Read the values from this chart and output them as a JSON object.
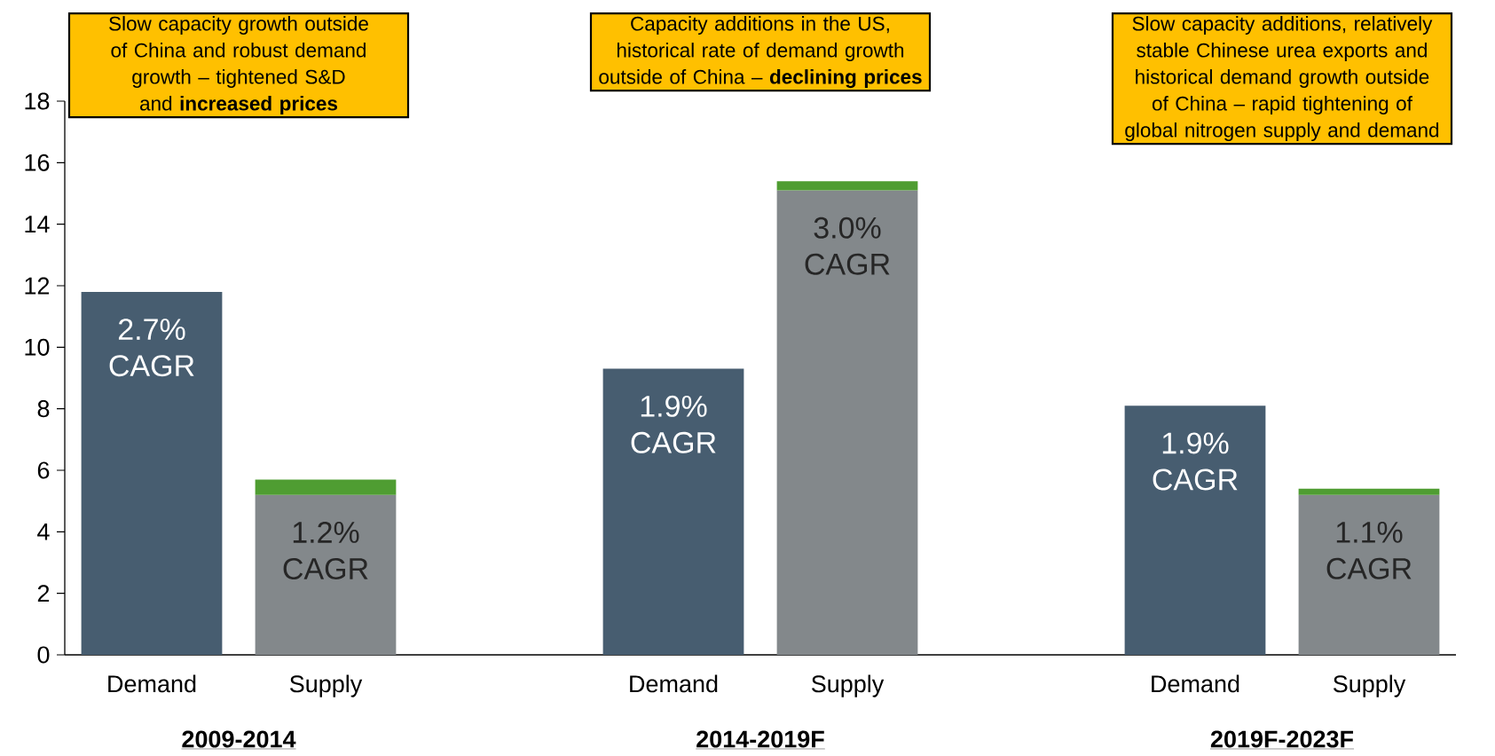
{
  "chart_data": {
    "type": "bar",
    "stacked": true,
    "categories": [
      "Demand",
      "Supply",
      null,
      "Demand",
      "Supply",
      null,
      "Demand",
      "Supply"
    ],
    "series": [
      {
        "colors": [
          "#475d70",
          "#83888b",
          null,
          "#475d70",
          "#83888b",
          null,
          "#475d70",
          "#83888b"
        ],
        "values": [
          11.8,
          5.2,
          null,
          9.3,
          15.1,
          null,
          8.1,
          5.2
        ]
      },
      {
        "color": "#4f9d32",
        "values": [
          null,
          0.5,
          null,
          null,
          0.3,
          null,
          null,
          0.2
        ]
      }
    ],
    "ylim": [
      0,
      18
    ],
    "yticks": [
      0,
      2,
      4,
      6,
      8,
      10,
      12,
      14,
      16,
      18
    ],
    "annotations": [
      "Slow capacity growth outside of China and robust demand growth – tightened S&D and **increased prices**",
      "Capacity additions in the US, historical rate of demand growth outside of China – **declining prices**",
      "Slow capacity additions, relatively stable Chinese urea exports and historical demand growth outside of China – rapid tightening of global nitrogen supply and demand",
      "2.7% CAGR",
      "1.2% CAGR",
      "1.9% CAGR",
      "3.0% CAGR",
      "1.9% CAGR",
      "1.1% CAGR",
      "2009-2014",
      "2014-2019F",
      "2019F-2023F"
    ]
  }
}
